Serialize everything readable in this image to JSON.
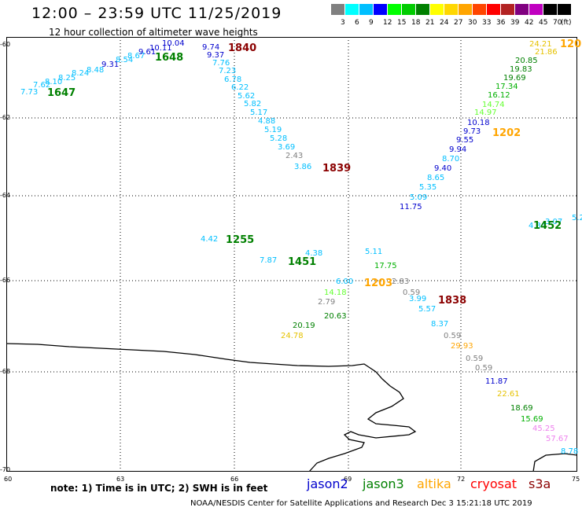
{
  "header": {
    "title": "12:00 – 23:59 UTC 11/25/2019",
    "subtitle": "12 hour collection of altimeter wave heights"
  },
  "legend": {
    "unit": "(ft)",
    "bins": [
      {
        "label": "3",
        "color": "#808080"
      },
      {
        "label": "6",
        "color": "#00ffff"
      },
      {
        "label": "9",
        "color": "#00bfff"
      },
      {
        "label": "12",
        "color": "#0000ff"
      },
      {
        "label": "15",
        "color": "#00ff00"
      },
      {
        "label": "18",
        "color": "#00cc00"
      },
      {
        "label": "21",
        "color": "#008000"
      },
      {
        "label": "24",
        "color": "#ffff00"
      },
      {
        "label": "27",
        "color": "#ffd700"
      },
      {
        "label": "30",
        "color": "#ffa500"
      },
      {
        "label": "33",
        "color": "#ff4500"
      },
      {
        "label": "36",
        "color": "#ff0000"
      },
      {
        "label": "39",
        "color": "#b22222"
      },
      {
        "label": "42",
        "color": "#800080"
      },
      {
        "label": "45",
        "color": "#c000c0"
      },
      {
        "label": "70",
        "color": "#000000"
      },
      {
        "label": "",
        "color": "#000000"
      }
    ]
  },
  "map": {
    "lat_ticks": [
      "-60",
      "-62",
      "-64",
      "-66",
      "-68",
      "-70"
    ],
    "lon_ticks": [
      "60",
      "63",
      "66",
      "69",
      "72",
      "75"
    ],
    "observations": [
      {
        "v": "7.73",
        "c": "#00bfff"
      },
      {
        "v": "7.62",
        "c": "#00bfff"
      },
      {
        "v": "8.10",
        "c": "#00bfff"
      },
      {
        "v": "8.25",
        "c": "#00bfff"
      },
      {
        "v": "8.24",
        "c": "#00bfff"
      },
      {
        "v": "8.48",
        "c": "#00bfff"
      },
      {
        "v": "9.31",
        "c": "#0000cd"
      },
      {
        "v": "8.54",
        "c": "#00bfff"
      },
      {
        "v": "8.67",
        "c": "#00bfff"
      },
      {
        "v": "9.61",
        "c": "#0000cd"
      },
      {
        "v": "10.11",
        "c": "#0000cd"
      },
      {
        "v": "10.04",
        "c": "#0000cd"
      },
      {
        "v": "9.74",
        "c": "#0000cd"
      },
      {
        "v": "9.37",
        "c": "#0000cd"
      },
      {
        "v": "7.76",
        "c": "#00bfff"
      },
      {
        "v": "7.23",
        "c": "#00bfff"
      },
      {
        "v": "6.78",
        "c": "#00bfff"
      },
      {
        "v": "6.22",
        "c": "#00bfff"
      },
      {
        "v": "5.62",
        "c": "#00bfff"
      },
      {
        "v": "5.82",
        "c": "#00bfff"
      },
      {
        "v": "5.17",
        "c": "#00bfff"
      },
      {
        "v": "4.88",
        "c": "#00bfff"
      },
      {
        "v": "5.19",
        "c": "#00bfff"
      },
      {
        "v": "5.28",
        "c": "#00bfff"
      },
      {
        "v": "3.69",
        "c": "#00bfff"
      },
      {
        "v": "2.43",
        "c": "#808080"
      },
      {
        "v": "3.86",
        "c": "#00bfff"
      },
      {
        "v": "24.21",
        "c": "#e6c200"
      },
      {
        "v": "21.86",
        "c": "#e6c200"
      },
      {
        "v": "20.85",
        "c": "#008000"
      },
      {
        "v": "19.83",
        "c": "#008000"
      },
      {
        "v": "19.69",
        "c": "#008000"
      },
      {
        "v": "17.34",
        "c": "#00b000"
      },
      {
        "v": "16.12",
        "c": "#00b000"
      },
      {
        "v": "14.74",
        "c": "#66ff33"
      },
      {
        "v": "14.97",
        "c": "#66ff33"
      },
      {
        "v": "10.18",
        "c": "#0000cd"
      },
      {
        "v": "9.73",
        "c": "#0000cd"
      },
      {
        "v": "9.55",
        "c": "#0000cd"
      },
      {
        "v": "9.94",
        "c": "#0000cd"
      },
      {
        "v": "8.70",
        "c": "#00bfff"
      },
      {
        "v": "9.40",
        "c": "#0000cd"
      },
      {
        "v": "8.65",
        "c": "#00bfff"
      },
      {
        "v": "5.35",
        "c": "#00bfff"
      },
      {
        "v": "5.09",
        "c": "#00bfff"
      },
      {
        "v": "11.75",
        "c": "#0000cd"
      },
      {
        "v": "4.42",
        "c": "#00bfff"
      },
      {
        "v": "7.87",
        "c": "#00bfff"
      },
      {
        "v": "4.38",
        "c": "#00bfff"
      },
      {
        "v": "5.11",
        "c": "#00bfff"
      },
      {
        "v": "17.75",
        "c": "#00b000"
      },
      {
        "v": "6.00",
        "c": "#00bfff"
      },
      {
        "v": "2.83",
        "c": "#808080"
      },
      {
        "v": "0.59",
        "c": "#808080"
      },
      {
        "v": "14.18",
        "c": "#66ff33"
      },
      {
        "v": "3.99",
        "c": "#00bfff"
      },
      {
        "v": "2.79",
        "c": "#808080"
      },
      {
        "v": "5.57",
        "c": "#00bfff"
      },
      {
        "v": "20.63",
        "c": "#008000"
      },
      {
        "v": "20.19",
        "c": "#008000"
      },
      {
        "v": "24.78",
        "c": "#e6c200"
      },
      {
        "v": "8.37",
        "c": "#00bfff"
      },
      {
        "v": "0.59",
        "c": "#808080"
      },
      {
        "v": "29.93",
        "c": "#ffa500"
      },
      {
        "v": "0.59",
        "c": "#808080"
      },
      {
        "v": "0.59",
        "c": "#808080"
      },
      {
        "v": "11.87",
        "c": "#0000cd"
      },
      {
        "v": "22.61",
        "c": "#e6c200"
      },
      {
        "v": "18.69",
        "c": "#008000"
      },
      {
        "v": "15.69",
        "c": "#00b000"
      },
      {
        "v": "45.25",
        "c": "#ee82ee"
      },
      {
        "v": "57.67",
        "c": "#ee82ee"
      },
      {
        "v": "8.78",
        "c": "#00bfff"
      },
      {
        "v": "4.34",
        "c": "#00bfff"
      },
      {
        "v": "3.07",
        "c": "#00bfff"
      },
      {
        "v": "5.2",
        "c": "#00bfff"
      }
    ],
    "time_labels": [
      {
        "v": "1647",
        "c": "#008000"
      },
      {
        "v": "1648",
        "c": "#008000"
      },
      {
        "v": "1840",
        "c": "#8b0000"
      },
      {
        "v": "1839",
        "c": "#8b0000"
      },
      {
        "v": "120",
        "c": "#ffa500"
      },
      {
        "v": "1202",
        "c": "#ffa500"
      },
      {
        "v": "1255",
        "c": "#008000"
      },
      {
        "v": "1451",
        "c": "#008000"
      },
      {
        "v": "1203",
        "c": "#ffa500"
      },
      {
        "v": "1838",
        "c": "#8b0000"
      },
      {
        "v": "1452",
        "c": "#008000"
      }
    ]
  },
  "note": "note: 1) Time is in UTC; 2) SWH is in feet",
  "satellites": [
    {
      "name": "jason2",
      "color": "#0000cd"
    },
    {
      "name": "jason3",
      "color": "#008000"
    },
    {
      "name": "altika",
      "color": "#ffa500"
    },
    {
      "name": "cryosat",
      "color": "#ff0000"
    },
    {
      "name": "s3a",
      "color": "#8b0000"
    }
  ],
  "footer": "NOAA/NESDIS Center for Satellite Applications and Research    Dec  3 15:21:18 UTC 2019"
}
